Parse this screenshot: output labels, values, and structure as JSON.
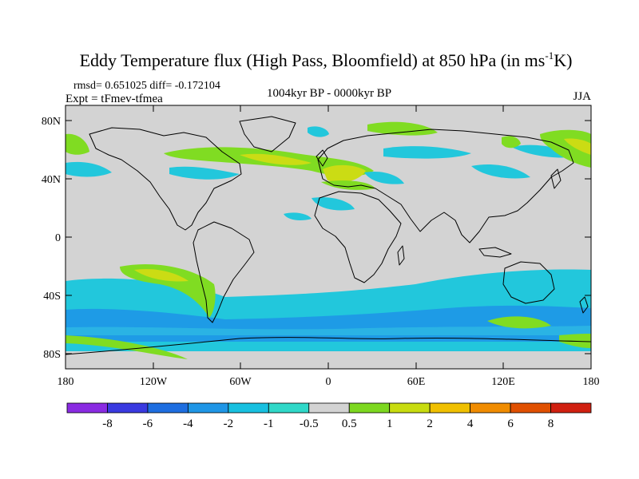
{
  "title": {
    "main": "Eddy Temperature flux (High Pass, Bloomfield) at 850 hPa (in ms",
    "sup": "-1",
    "tail": "K)"
  },
  "stats": "rmsd= 0.651025 diff= -0.172104",
  "expt": "Expt = tFmev-tfmea",
  "period": "1004kyr BP - 0000kyr BP",
  "season": "JJA",
  "lat_labels": [
    "80N",
    "40N",
    "0",
    "40S",
    "80S"
  ],
  "lon_labels": [
    "180",
    "120W",
    "60W",
    "0",
    "60E",
    "120E",
    "180"
  ],
  "colorbar": {
    "labels": [
      "-8",
      "-6",
      "-4",
      "-2",
      "-1",
      "-0.5",
      "0.5",
      "1",
      "2",
      "4",
      "6",
      "8"
    ],
    "colors": [
      "#8a2be2",
      "#3a3ae0",
      "#1e6ee0",
      "#1f96e6",
      "#18c0e0",
      "#30d8c8",
      "#d3d3d3",
      "#7dd820",
      "#c8dc10",
      "#f0c000",
      "#f08c00",
      "#e05000",
      "#d02010"
    ]
  },
  "palette": {
    "ocean": "#d3d3d3",
    "cyan": "#22c7dc",
    "blue": "#1e9be6",
    "green": "#80dc22",
    "yellow": "#cbdc14",
    "orange": "#f0c000"
  }
}
